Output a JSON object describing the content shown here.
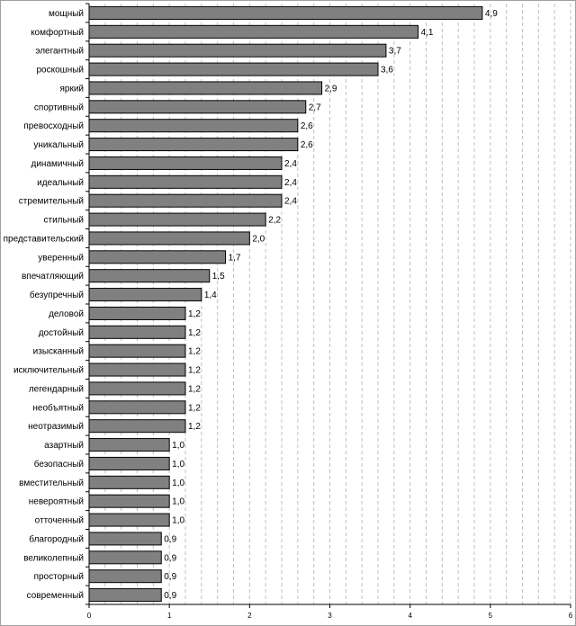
{
  "chart_data": {
    "type": "bar",
    "orientation": "horizontal",
    "categories": [
      "мощный",
      "комфортный",
      "элегантный",
      "роскошный",
      "яркий",
      "спортивный",
      "превосходный",
      "уникальный",
      "динамичный",
      "идеальный",
      "стремительный",
      "стильный",
      "представительский",
      "уверенный",
      "впечатляющий",
      "безупречный",
      "деловой",
      "достойный",
      "изысканный",
      "исключительный",
      "легендарный",
      "необъятный",
      "неотразимый",
      "азартный",
      "безопасный",
      "вместительный",
      "невероятный",
      "отточенный",
      "благородный",
      "великолепный",
      "просторный",
      "современный"
    ],
    "values": [
      4.9,
      4.1,
      3.7,
      3.6,
      2.9,
      2.7,
      2.6,
      2.6,
      2.4,
      2.4,
      2.4,
      2.2,
      2.0,
      1.7,
      1.5,
      1.4,
      1.2,
      1.2,
      1.2,
      1.2,
      1.2,
      1.2,
      1.2,
      1.0,
      1.0,
      1.0,
      1.0,
      1.0,
      0.9,
      0.9,
      0.9,
      0.9
    ],
    "value_labels": [
      "4,9",
      "4,1",
      "3,7",
      "3,6",
      "2,9",
      "2,7",
      "2,6",
      "2,6",
      "2,4",
      "2,4",
      "2,4",
      "2,2",
      "2,0",
      "1,7",
      "1,5",
      "1,4",
      "1,2",
      "1,2",
      "1,2",
      "1,2",
      "1,2",
      "1,2",
      "1,2",
      "1,0",
      "1,0",
      "1,0",
      "1,0",
      "1,0",
      "0,9",
      "0,9",
      "0,9",
      "0,9"
    ],
    "xlim": [
      0,
      6
    ],
    "xticks": [
      0,
      1,
      2,
      3,
      4,
      5,
      6
    ],
    "title": "",
    "xlabel": "",
    "ylabel": "",
    "grid": true,
    "legend": "none",
    "colors": {
      "bar_fill": "#808080",
      "bar_stroke": "#000000",
      "grid": "#c0c0c0",
      "axis": "#000000",
      "frame": "#a0a0a0"
    }
  }
}
